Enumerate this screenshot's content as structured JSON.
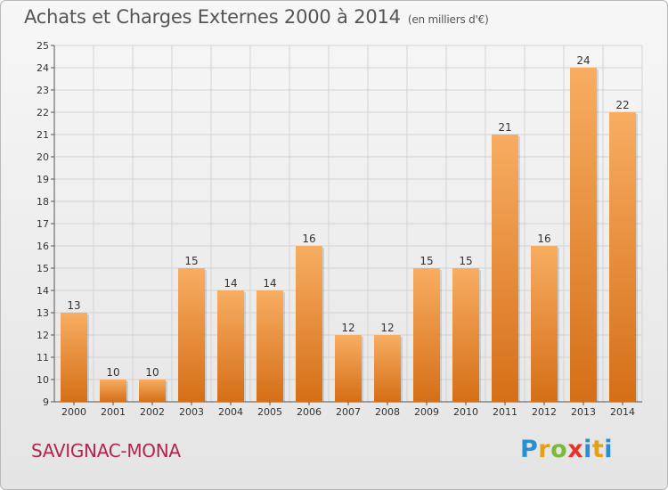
{
  "title": "Achats et Charges Externes 2000 à 2014",
  "subtitle": "(en milliers d'€)",
  "place_name": "SAVIGNAC-MONA",
  "logo_text": "Proxiti",
  "colors": {
    "bar_light": "#f6a85a",
    "bar_dark": "#d9731a",
    "place": "#b0264f",
    "text": "#555555"
  },
  "chart_data": {
    "type": "bar",
    "categories": [
      "2000",
      "2001",
      "2002",
      "2003",
      "2004",
      "2005",
      "2006",
      "2007",
      "2008",
      "2009",
      "2010",
      "2011",
      "2012",
      "2013",
      "2014"
    ],
    "values": [
      13,
      10,
      10,
      15,
      14,
      14,
      16,
      12,
      12,
      15,
      15,
      21,
      16,
      24,
      22
    ],
    "title": "Achats et Charges Externes 2000 à 2014",
    "xlabel": "",
    "ylabel": "",
    "ylim": [
      9,
      25
    ],
    "yticks": [
      9,
      10,
      11,
      12,
      13,
      14,
      15,
      16,
      17,
      18,
      19,
      20,
      21,
      22,
      23,
      24,
      25
    ],
    "grid": true,
    "data_labels": true
  }
}
